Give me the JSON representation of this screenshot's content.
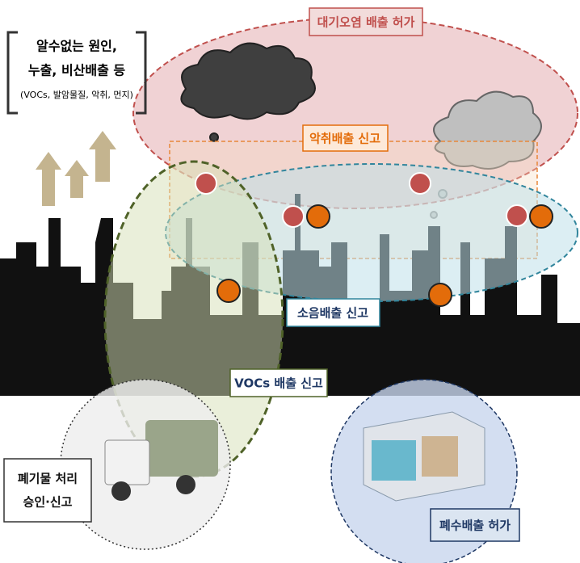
{
  "callout": {
    "lines": [
      "알수없는 원인,",
      "누출, 비산배출 등",
      "(VOCs, 발암물질, 악취, 먼지)"
    ]
  },
  "regions": {
    "air": {
      "label": "대기오염 배출 허가"
    },
    "odor": {
      "label": "악취배출 신고"
    },
    "noise": {
      "label": "소음배출 신고"
    },
    "vocs": {
      "label": "VOCs 배출 신고"
    },
    "waste": {
      "lines": [
        "폐기물 처리",
        "승인·신고"
      ]
    },
    "wastewater": {
      "label": "폐수배출 허가"
    }
  }
}
